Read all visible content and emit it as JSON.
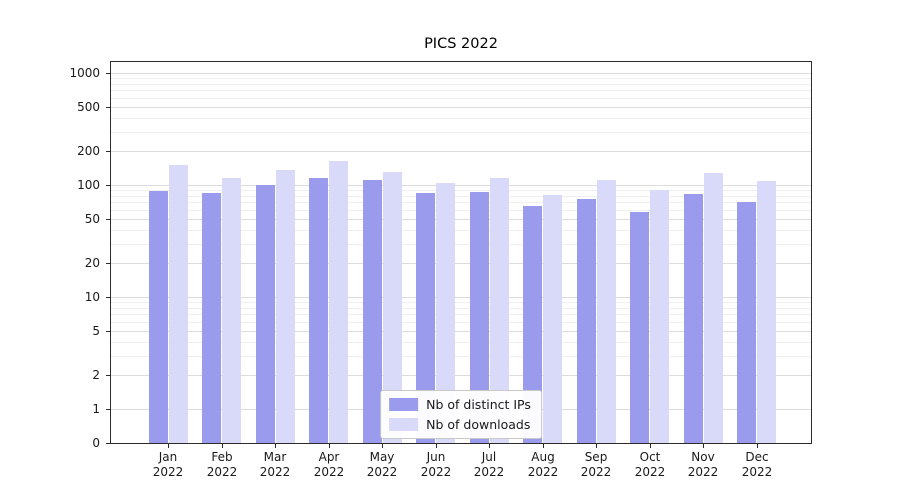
{
  "title": "PICS 2022",
  "chart_data": {
    "type": "bar",
    "title": "PICS 2022",
    "yscale": "symlog",
    "grid": true,
    "legend_position": "lower center",
    "ylim": [
      0,
      1100
    ],
    "yticks": [
      0,
      1,
      2,
      5,
      10,
      20,
      50,
      100,
      200,
      500,
      1000
    ],
    "categories": [
      "Jan 2022",
      "Feb 2022",
      "Mar 2022",
      "Apr 2022",
      "May 2022",
      "Jun 2022",
      "Jul 2022",
      "Aug 2022",
      "Sep 2022",
      "Oct 2022",
      "Nov 2022",
      "Dec 2022"
    ],
    "series": [
      {
        "name": "Nb of distinct IPs",
        "color": "#9b9bee",
        "values": [
          88,
          85,
          100,
          115,
          110,
          85,
          87,
          65,
          75,
          57,
          83,
          70
        ]
      },
      {
        "name": "Nb of downloads",
        "color": "#d9d9f9",
        "values": [
          150,
          115,
          135,
          165,
          130,
          105,
          115,
          82,
          112,
          90,
          128,
          108
        ]
      }
    ]
  }
}
